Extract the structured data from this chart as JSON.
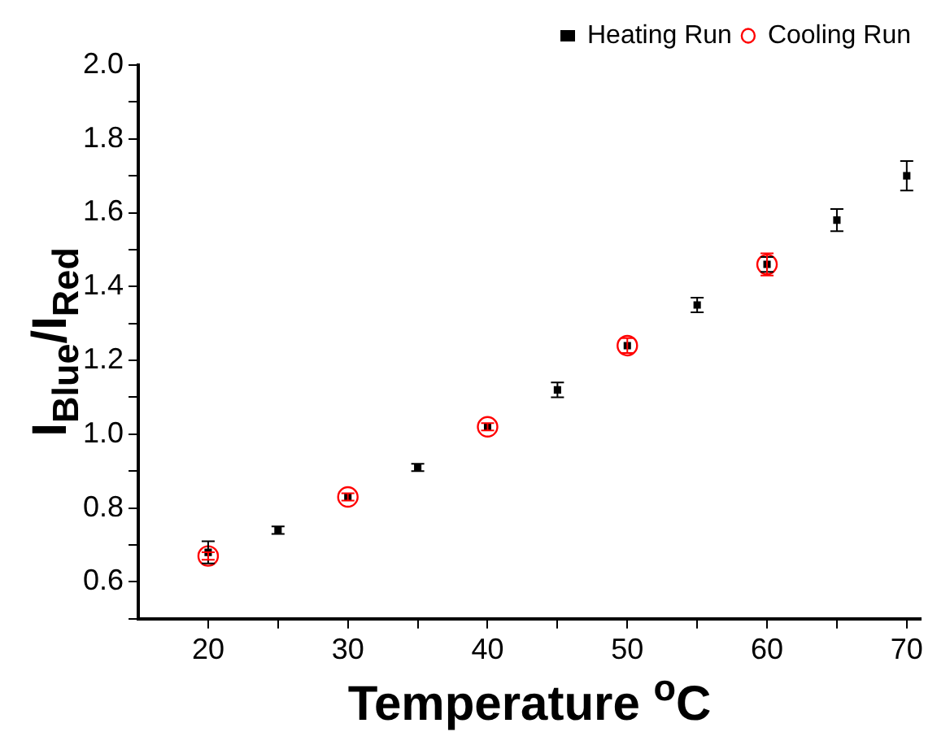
{
  "chart_data": {
    "type": "scatter",
    "xlabel": "Temperature $^{o}$C",
    "ylabel": "I$_{Blue}$/I$_{Red}$",
    "xlim": [
      15,
      71
    ],
    "xticks": [
      20,
      {
        "value": 25,
        "label": null
      },
      30,
      {
        "value": 35,
        "label": null
      },
      40,
      {
        "value": 45,
        "label": null
      },
      50,
      {
        "value": 55,
        "label": null
      },
      60,
      {
        "value": 65,
        "label": null
      },
      70
    ],
    "ylim": [
      0.5,
      2.0
    ],
    "yticks": [
      {
        "value": 0.5,
        "label": null
      },
      0.6,
      {
        "value": 0.7,
        "label": null
      },
      0.8,
      {
        "value": 0.9,
        "label": null
      },
      {
        "value": 1,
        "label": "1.0"
      },
      {
        "value": 1.1,
        "label": null
      },
      1.2,
      {
        "value": 1.3,
        "label": null
      },
      1.4,
      {
        "value": 1.5,
        "label": null
      },
      1.6,
      {
        "value": 1.7,
        "label": null
      },
      1.8,
      {
        "value": 1.9,
        "label": null
      },
      {
        "value": 2,
        "label": "2.0"
      }
    ],
    "grid": false,
    "legend": "top right",
    "series": [
      {
        "name": "Heating Run",
        "color": "#000000",
        "marker": "square",
        "x": [
          20,
          25,
          30,
          35,
          40,
          45,
          50,
          55,
          60,
          65,
          70
        ],
        "values": [
          0.68,
          0.74,
          0.83,
          0.91,
          1.02,
          1.12,
          1.24,
          1.35,
          1.46,
          1.58,
          1.7
        ],
        "errors": [
          0.03,
          0.01,
          null,
          0.01,
          null,
          0.02,
          null,
          0.02,
          0.02,
          0.03,
          0.04
        ]
      },
      {
        "name": "Cooling Run",
        "color": "#ff0000",
        "marker": "circle",
        "x": [
          20,
          30,
          40,
          50,
          60
        ],
        "values": [
          0.67,
          0.83,
          1.02,
          1.24,
          1.46
        ],
        "errors": [
          0.01,
          0.01,
          0.01,
          0.02,
          0.03
        ]
      }
    ]
  }
}
